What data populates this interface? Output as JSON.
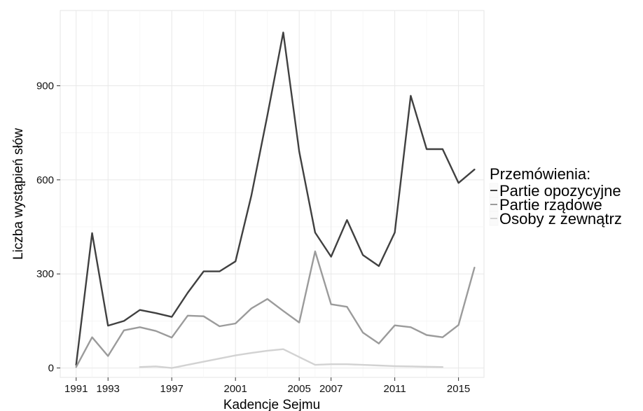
{
  "chart_data": {
    "type": "line",
    "xlabel": "Kadencje Sejmu",
    "ylabel": "Liczba wystąpień słów",
    "xlim": [
      1990,
      2016.6
    ],
    "ylim": [
      -30,
      1140
    ],
    "xticks": [
      1991,
      1993,
      1997,
      2001,
      2005,
      2007,
      2011,
      2015
    ],
    "yticks": [
      0,
      300,
      600,
      900
    ],
    "grid": true,
    "legend": {
      "title": "Przemówienia:",
      "placement": "right"
    },
    "series": [
      {
        "name": "Partie opozycyjne",
        "color": "#404040",
        "points": [
          [
            1991,
            10
          ],
          [
            1992,
            430
          ],
          [
            1993,
            135
          ],
          [
            1994,
            150
          ],
          [
            1995,
            185
          ],
          [
            1996,
            175
          ],
          [
            1997,
            163
          ],
          [
            1998,
            240
          ],
          [
            1999,
            308
          ],
          [
            2000,
            308
          ],
          [
            2001,
            340
          ],
          [
            2002,
            550
          ],
          [
            2003,
            805
          ],
          [
            2004,
            1070
          ],
          [
            2005,
            690
          ],
          [
            2006,
            432
          ],
          [
            2007,
            355
          ],
          [
            2008,
            472
          ],
          [
            2009,
            360
          ],
          [
            2010,
            325
          ],
          [
            2011,
            432
          ],
          [
            2012,
            868
          ],
          [
            2013,
            698
          ],
          [
            2014,
            698
          ],
          [
            2015,
            590
          ],
          [
            2016,
            633
          ]
        ]
      },
      {
        "name": "Partie rządowe",
        "color": "#9b9b9b",
        "points": [
          [
            1991,
            3
          ],
          [
            1992,
            98
          ],
          [
            1993,
            38
          ],
          [
            1994,
            120
          ],
          [
            1995,
            130
          ],
          [
            1996,
            118
          ],
          [
            1997,
            97
          ],
          [
            1998,
            167
          ],
          [
            1999,
            165
          ],
          [
            2000,
            133
          ],
          [
            2001,
            142
          ],
          [
            2002,
            190
          ],
          [
            2003,
            220
          ],
          [
            2004,
            182
          ],
          [
            2005,
            145
          ],
          [
            2006,
            372
          ],
          [
            2007,
            203
          ],
          [
            2008,
            195
          ],
          [
            2009,
            113
          ],
          [
            2010,
            78
          ],
          [
            2011,
            136
          ],
          [
            2012,
            130
          ],
          [
            2013,
            105
          ],
          [
            2014,
            98
          ],
          [
            2015,
            137
          ],
          [
            2016,
            320
          ]
        ]
      },
      {
        "name": "Osoby z zewnątrz",
        "color": "#d2d2d2",
        "points": [
          [
            1995,
            3
          ],
          [
            1996,
            5
          ],
          [
            1997,
            0
          ],
          [
            1998,
            10
          ],
          [
            1999,
            20
          ],
          [
            2000,
            30
          ],
          [
            2001,
            40
          ],
          [
            2002,
            48
          ],
          [
            2003,
            55
          ],
          [
            2004,
            60
          ],
          [
            2005,
            35
          ],
          [
            2006,
            10
          ],
          [
            2007,
            12
          ],
          [
            2008,
            12
          ],
          [
            2009,
            10
          ],
          [
            2010,
            8
          ],
          [
            2011,
            6
          ],
          [
            2012,
            5
          ],
          [
            2013,
            4
          ],
          [
            2014,
            3
          ]
        ]
      }
    ]
  }
}
